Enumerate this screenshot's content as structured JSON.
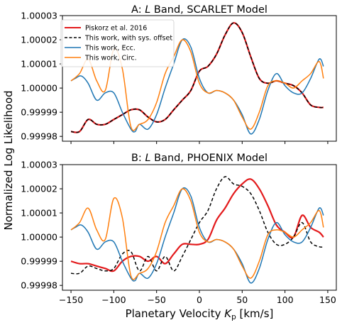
{
  "chart_data": [
    {
      "type": "line",
      "title": "A: L Band, SCARLET Model",
      "title_prefix": "A: ",
      "title_italic": "L",
      "title_suffix": " Band, SCARLET Model",
      "xlabel": "Planetary Velocity K_p [km/s]",
      "ylabel": "Normalized Log Likelihood",
      "xlim": [
        -160,
        160
      ],
      "ylim": [
        0.999978,
        1.00003
      ],
      "xticks": [
        -150,
        -100,
        -50,
        0,
        50,
        100,
        150
      ],
      "yticks": [
        0.99998,
        0.99999,
        1.0,
        1.00001,
        1.00002,
        1.00003
      ],
      "ytick_labels": [
        "0.99998",
        "0.99999",
        "1.00000",
        "1.00001",
        "1.00002",
        "1.00003"
      ],
      "legend_position": "upper-left",
      "grid": false,
      "series": [
        {
          "name": "Piskorz et al. 2016",
          "color": "#e31a1c",
          "style": "solid",
          "x": [
            -150,
            -140,
            -130,
            -120,
            -110,
            -100,
            -90,
            -80,
            -70,
            -60,
            -50,
            -40,
            -30,
            -20,
            -10,
            0,
            10,
            20,
            30,
            40,
            50,
            60,
            70,
            80,
            90,
            100,
            110,
            120,
            130,
            140,
            145
          ],
          "y": [
            0.999982,
            0.999982,
            0.999987,
            0.999985,
            0.999985,
            0.999987,
            0.999989,
            0.999991,
            0.999991,
            0.999988,
            0.999986,
            0.999987,
            0.999991,
            0.999995,
            0.999999,
            1.000007,
            1.000009,
            1.000014,
            1.000022,
            1.000027,
            1.000023,
            1.000013,
            1.000004,
            1.000002,
            1.000003,
            1.000002,
            1.000001,
            0.999998,
            0.999993,
            0.999992,
            0.999992
          ]
        },
        {
          "name": "This work, with sys. offset",
          "color": "#000000",
          "style": "dashed",
          "x": [
            -150,
            -140,
            -130,
            -120,
            -110,
            -100,
            -90,
            -80,
            -70,
            -60,
            -50,
            -40,
            -30,
            -20,
            -10,
            0,
            10,
            20,
            30,
            40,
            50,
            60,
            70,
            80,
            90,
            100,
            110,
            120,
            130,
            140,
            145
          ],
          "y": [
            0.999982,
            0.999982,
            0.999987,
            0.999985,
            0.999985,
            0.999987,
            0.999989,
            0.999991,
            0.999991,
            0.999988,
            0.999986,
            0.999987,
            0.999991,
            0.999995,
            0.999999,
            1.000007,
            1.000009,
            1.000014,
            1.000022,
            1.000027,
            1.000023,
            1.000013,
            1.000004,
            1.000002,
            1.000003,
            1.000002,
            1.000001,
            0.999998,
            0.999993,
            0.999992,
            0.999992
          ]
        },
        {
          "name": "This work, Ecc.",
          "color": "#1f77b4",
          "style": "solid",
          "x": [
            -150,
            -145,
            -138,
            -130,
            -120,
            -110,
            -100,
            -90,
            -80,
            -75,
            -70,
            -60,
            -50,
            -40,
            -30,
            -20,
            -10,
            0,
            10,
            20,
            30,
            40,
            50,
            60,
            70,
            80,
            90,
            100,
            110,
            120,
            130,
            140,
            145
          ],
          "y": [
            1.000003,
            1.000004,
            1.000005,
            1.000002,
            0.999995,
            0.999998,
            0.999998,
            0.99999,
            0.999983,
            0.999982,
            0.999985,
            0.999983,
            0.999989,
            1.0,
            1.00001,
            1.00002,
            1.000017,
            1.000004,
            0.999998,
            0.999999,
            0.999998,
            0.999995,
            0.999989,
            0.999981,
            0.999987,
            0.999999,
            1.000006,
            1.000001,
            0.999998,
            0.999998,
            1.000004,
            1.000012,
            1.000009
          ]
        },
        {
          "name": "This work, Circ.",
          "color": "#ff7f0e",
          "style": "solid",
          "x": [
            -150,
            -140,
            -130,
            -120,
            -110,
            -100,
            -90,
            -80,
            -70,
            -60,
            -50,
            -40,
            -30,
            -20,
            -10,
            0,
            10,
            20,
            30,
            40,
            50,
            60,
            70,
            80,
            90,
            100,
            110,
            120,
            130,
            140,
            145
          ],
          "y": [
            1.000003,
            1.000006,
            1.000012,
            1.000003,
            0.999999,
            1.000016,
            1.000008,
            0.999984,
            0.999985,
            0.999987,
            0.999994,
            1.000006,
            1.000013,
            1.00002,
            1.000015,
            1.000002,
            0.999998,
            0.999999,
            0.999998,
            0.999995,
            0.999988,
            0.999983,
            0.99999,
            1.000001,
            1.000003,
            1.000002,
            1.0,
            1.000003,
            1.000006,
            1.000011,
            1.000004
          ]
        }
      ]
    },
    {
      "type": "line",
      "title": "B: L Band, PHOENIX Model",
      "title_prefix": "B: ",
      "title_italic": "L",
      "title_suffix": " Band, PHOENIX Model",
      "xlabel": "Planetary Velocity K_p [km/s]",
      "ylabel": "Normalized Log Likelihood",
      "xlim": [
        -160,
        160
      ],
      "ylim": [
        0.999978,
        1.00003
      ],
      "xticks": [
        -150,
        -100,
        -50,
        0,
        50,
        100,
        150
      ],
      "yticks": [
        0.99998,
        0.99999,
        1.0,
        1.00001,
        1.00002,
        1.00003
      ],
      "ytick_labels": [
        "0.99998",
        "0.99999",
        "1.00000",
        "1.00001",
        "1.00002",
        "1.00003"
      ],
      "grid": false,
      "series": [
        {
          "color": "#e31a1c",
          "style": "solid",
          "x": [
            -150,
            -140,
            -130,
            -120,
            -110,
            -100,
            -90,
            -80,
            -70,
            -60,
            -50,
            -40,
            -30,
            -20,
            -10,
            0,
            10,
            20,
            30,
            40,
            50,
            60,
            70,
            80,
            90,
            100,
            110,
            120,
            130,
            140,
            145
          ],
          "y": [
            0.99999,
            0.999989,
            0.999989,
            0.999988,
            0.999987,
            0.999986,
            0.99999,
            0.999992,
            0.999992,
            0.99999,
            0.999992,
            0.999989,
            0.999993,
            0.999997,
            0.999997,
            0.999997,
            0.999999,
            1.000007,
            1.000012,
            1.000018,
            1.000022,
            1.000024,
            1.00002,
            1.000013,
            1.000005,
            1.000002,
            1.0,
            1.000009,
            1.000004,
            1.000002,
            1.0
          ]
        },
        {
          "color": "#000000",
          "style": "dashed",
          "x": [
            -150,
            -140,
            -130,
            -120,
            -110,
            -100,
            -90,
            -80,
            -70,
            -60,
            -50,
            -40,
            -30,
            -20,
            -10,
            0,
            10,
            20,
            30,
            40,
            50,
            60,
            70,
            80,
            90,
            100,
            110,
            120,
            130,
            140,
            145
          ],
          "y": [
            0.999985,
            0.999985,
            0.999988,
            0.999987,
            0.999986,
            0.999987,
            0.999993,
            0.999994,
            0.999986,
            0.999992,
            0.999986,
            0.999992,
            0.999986,
            0.999992,
            0.999999,
            1.000006,
            1.000011,
            1.00002,
            1.000025,
            1.000022,
            1.000021,
            1.000018,
            1.000011,
            1.000002,
            0.999997,
            0.999997,
            1.0,
            1.000006,
            0.999998,
            0.999996,
            0.999996
          ]
        },
        {
          "color": "#1f77b4",
          "style": "solid",
          "x": [
            -150,
            -145,
            -138,
            -130,
            -120,
            -110,
            -100,
            -90,
            -80,
            -75,
            -70,
            -60,
            -50,
            -40,
            -30,
            -20,
            -10,
            0,
            10,
            20,
            30,
            40,
            50,
            60,
            70,
            80,
            90,
            100,
            110,
            120,
            130,
            140,
            145
          ],
          "y": [
            1.000003,
            1.000004,
            1.000005,
            1.000002,
            0.999995,
            0.999998,
            0.999998,
            0.99999,
            0.999983,
            0.999982,
            0.999985,
            0.999983,
            0.999989,
            1.0,
            1.00001,
            1.00002,
            1.000017,
            1.000004,
            0.999998,
            0.999999,
            0.999998,
            0.999995,
            0.999989,
            0.999981,
            0.999987,
            0.999999,
            1.000006,
            1.000001,
            0.999998,
            0.999998,
            1.000004,
            1.000012,
            1.000009
          ]
        },
        {
          "color": "#ff7f0e",
          "style": "solid",
          "x": [
            -150,
            -140,
            -130,
            -120,
            -110,
            -100,
            -90,
            -80,
            -70,
            -60,
            -50,
            -40,
            -30,
            -20,
            -10,
            0,
            10,
            20,
            30,
            40,
            50,
            60,
            70,
            80,
            90,
            100,
            110,
            120,
            130,
            140,
            145
          ],
          "y": [
            1.000003,
            1.000006,
            1.000012,
            1.000003,
            0.999999,
            1.000016,
            1.000008,
            0.999984,
            0.999985,
            0.999987,
            0.999994,
            1.000006,
            1.000013,
            1.00002,
            1.000015,
            1.000002,
            0.999998,
            0.999999,
            0.999998,
            0.999995,
            0.999988,
            0.999983,
            0.99999,
            1.000001,
            1.000003,
            1.000002,
            1.0,
            1.000003,
            1.000006,
            1.000011,
            1.000004
          ]
        }
      ]
    }
  ],
  "shared": {
    "ylabel": "Normalized Log Likelihood",
    "xlabel_prefix": "Planetary Velocity ",
    "xlabel_symbol": "K",
    "xlabel_subscript": "p",
    "xlabel_suffix": " [km/s]"
  }
}
